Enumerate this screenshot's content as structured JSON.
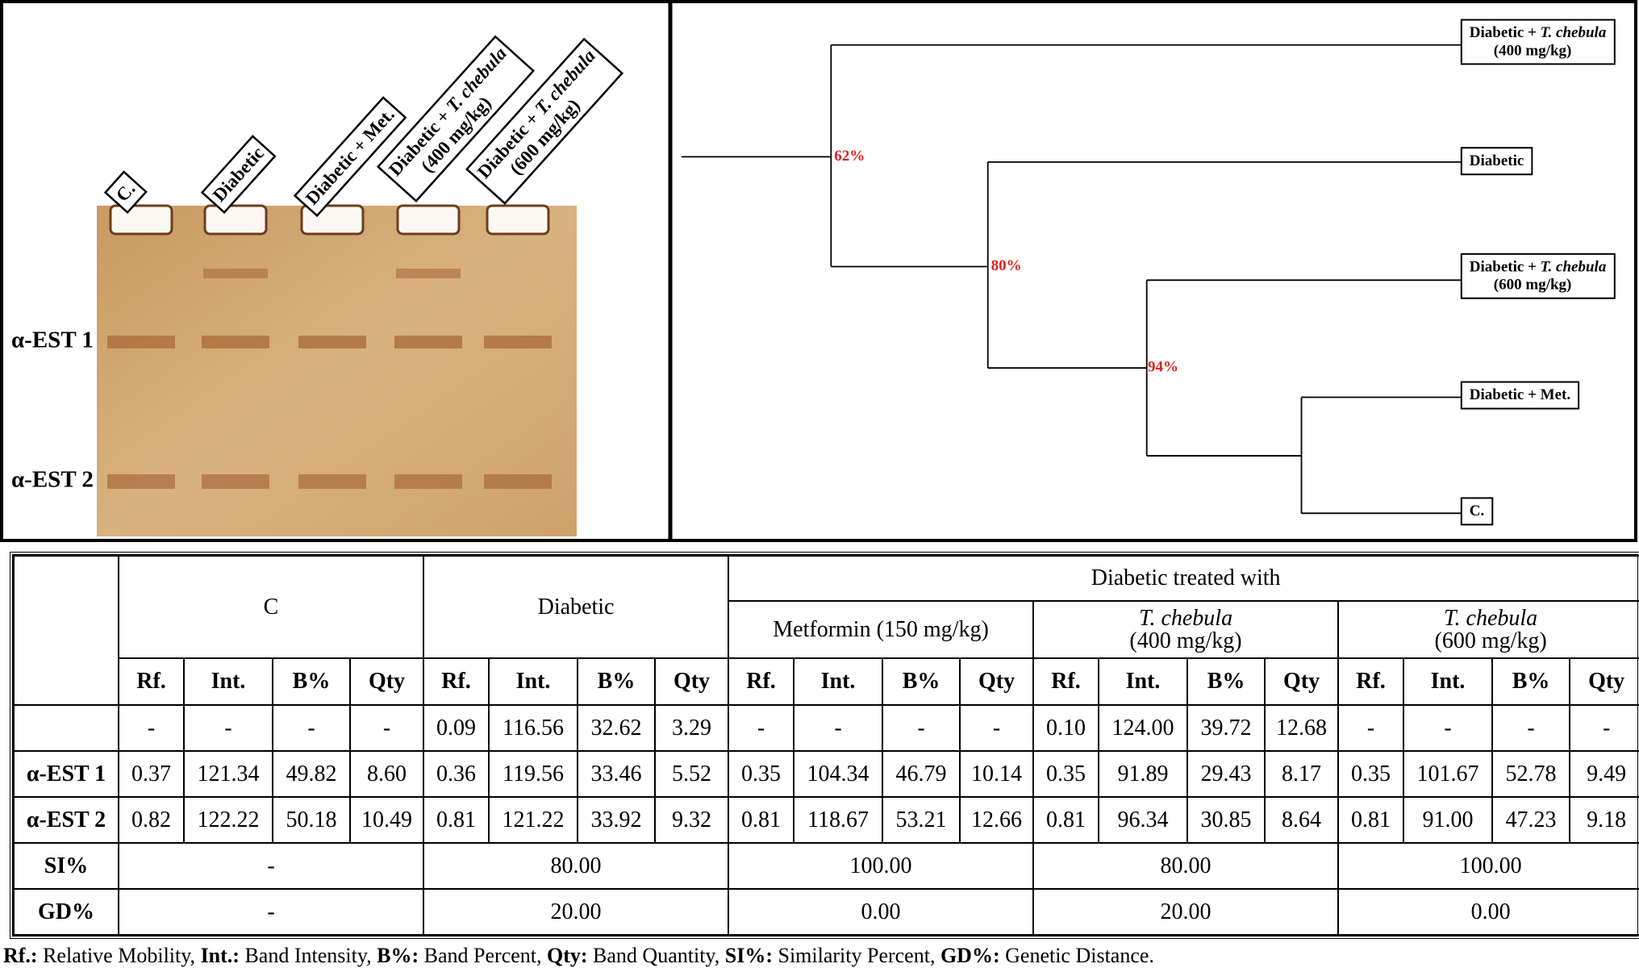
{
  "gel": {
    "lanes": [
      {
        "text": "C."
      },
      {
        "text": "Diabetic"
      },
      {
        "text": "Diabetic + Met."
      },
      {
        "text": "Diabetic + ",
        "italic": "T. chebula",
        "dose": "(400 mg/kg)"
      },
      {
        "text": "Diabetic + ",
        "italic": "T. chebula",
        "dose": "(600 mg/kg)"
      }
    ],
    "bands": [
      "α-EST 1",
      "α-EST 2"
    ]
  },
  "dendrogram": {
    "leaves": [
      {
        "text": "Diabetic + ",
        "italic": "T. chebula",
        "dose": "(400 mg/kg)"
      },
      {
        "text": "Diabetic"
      },
      {
        "text": "Diabetic + ",
        "italic": "T. chebula",
        "dose": "(600 mg/kg)"
      },
      {
        "text": "Diabetic + Met."
      },
      {
        "text": "C."
      }
    ],
    "nodes": [
      "62%",
      "80%",
      "94%"
    ]
  },
  "table": {
    "group_header": "Diabetic treated with",
    "groups": [
      {
        "text": "C"
      },
      {
        "text": "Diabetic"
      },
      {
        "text": "Metformin (150 mg/kg)"
      },
      {
        "italic": "T. chebula",
        "dose": "(400 mg/kg)"
      },
      {
        "italic": "T. chebula",
        "dose": "(600 mg/kg)"
      }
    ],
    "column_headers": [
      "Rf.",
      "Int.",
      "B%",
      "Qty"
    ],
    "rows": [
      {
        "values": [
          "-",
          "-",
          "-",
          "-",
          "0.09",
          "116.56",
          "32.62",
          "3.29",
          "-",
          "-",
          "-",
          "-",
          "0.10",
          "124.00",
          "39.72",
          "12.68",
          "-",
          "-",
          "-",
          "-"
        ]
      },
      {
        "label": "α-EST 1",
        "values": [
          "0.37",
          "121.34",
          "49.82",
          "8.60",
          "0.36",
          "119.56",
          "33.46",
          "5.52",
          "0.35",
          "104.34",
          "46.79",
          "10.14",
          "0.35",
          "91.89",
          "29.43",
          "8.17",
          "0.35",
          "101.67",
          "52.78",
          "9.49"
        ]
      },
      {
        "label": "α-EST 2",
        "values": [
          "0.82",
          "122.22",
          "50.18",
          "10.49",
          "0.81",
          "121.22",
          "33.92",
          "9.32",
          "0.81",
          "118.67",
          "53.21",
          "12.66",
          "0.81",
          "96.34",
          "30.85",
          "8.64",
          "0.81",
          "91.00",
          "47.23",
          "9.18"
        ]
      }
    ],
    "summary_rows": [
      {
        "label": "SI%",
        "values": [
          "-",
          "80.00",
          "100.00",
          "80.00",
          "100.00"
        ]
      },
      {
        "label": "GD%",
        "values": [
          "-",
          "20.00",
          "0.00",
          "20.00",
          "0.00"
        ]
      }
    ]
  },
  "footnote": [
    {
      "term": "Rf.:",
      "desc": " Relative Mobility, "
    },
    {
      "term": "Int.:",
      "desc": " Band Intensity, "
    },
    {
      "term": "B%:",
      "desc": " Band Percent, "
    },
    {
      "term": "Qty:",
      "desc": " Band Quantity, "
    },
    {
      "term": "SI%:",
      "desc": " Similarity Percent, "
    },
    {
      "term": "GD%:",
      "desc": " Genetic Distance."
    }
  ]
}
